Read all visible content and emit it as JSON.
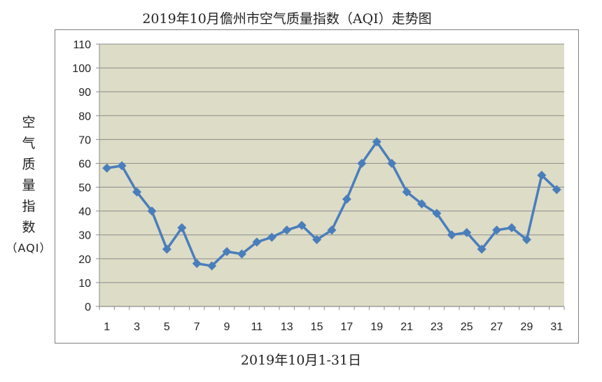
{
  "chart_data": {
    "type": "line",
    "title": "2019年10月儋州市空气质量指数（AQI）走势图",
    "xlabel": "2019年10月1-31日",
    "ylabel_chars": [
      "空",
      "气",
      "质",
      "量",
      "指",
      "数"
    ],
    "ylabel_paren": "（AQI）",
    "x": [
      1,
      2,
      3,
      4,
      5,
      6,
      7,
      8,
      9,
      10,
      11,
      12,
      13,
      14,
      15,
      16,
      17,
      18,
      19,
      20,
      21,
      22,
      23,
      24,
      25,
      26,
      27,
      28,
      29,
      30,
      31
    ],
    "x_tick_labels": [
      "1",
      "3",
      "5",
      "7",
      "9",
      "11",
      "13",
      "15",
      "17",
      "19",
      "21",
      "23",
      "25",
      "27",
      "29",
      "31"
    ],
    "series": [
      {
        "values": [
          58,
          59,
          48,
          40,
          24,
          33,
          18,
          17,
          23,
          22,
          27,
          29,
          32,
          34,
          28,
          32,
          45,
          60,
          69,
          60,
          48,
          43,
          39,
          30,
          31,
          24,
          32,
          33,
          28,
          55,
          49
        ]
      }
    ],
    "ylim": [
      0,
      110
    ],
    "y_ticks": [
      0,
      10,
      20,
      30,
      40,
      50,
      60,
      70,
      80,
      90,
      100,
      110
    ],
    "grid": true,
    "legend": "none",
    "colors": {
      "plot_background": "#dddcc6",
      "series_line": "#4a7ebb",
      "gridline": "#8c8c8c"
    },
    "marker": "diamond"
  }
}
